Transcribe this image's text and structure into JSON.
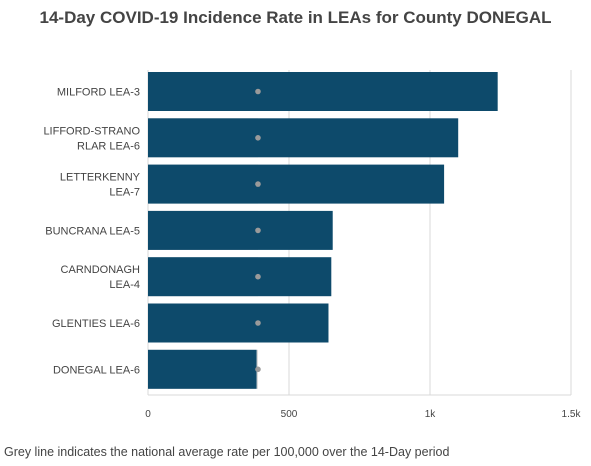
{
  "title": "14-Day COVID-19 Incidence Rate in LEAs for County DONEGAL",
  "footer_note": "Grey line indicates the national average rate per 100,000 over the 14-Day period",
  "colors": {
    "bar": "#0d4a6b",
    "shadow_bar": "#d9d9d9",
    "average_dot": "#9a9a9a",
    "grid": "#d8d8d8",
    "text": "#444444"
  },
  "chart_data": {
    "type": "bar",
    "orientation": "horizontal",
    "categories": [
      [
        "MILFORD LEA-3"
      ],
      [
        "LIFFORD-STRANO",
        "RLAR LEA-6"
      ],
      [
        "LETTERKENNY",
        "LEA-7"
      ],
      [
        "BUNCRANA LEA-5"
      ],
      [
        "CARNDONAGH",
        "LEA-4"
      ],
      [
        "GLENTIES LEA-6"
      ],
      [
        "DONEGAL LEA-6"
      ]
    ],
    "values": [
      1240,
      1100,
      1050,
      655,
      650,
      640,
      385
    ],
    "national_average": 390,
    "xlim": [
      0,
      1500
    ],
    "xticks": [
      0,
      500,
      1000,
      1500
    ],
    "xtick_labels": [
      "0",
      "500",
      "1k",
      "1.5k"
    ],
    "grid": true
  }
}
